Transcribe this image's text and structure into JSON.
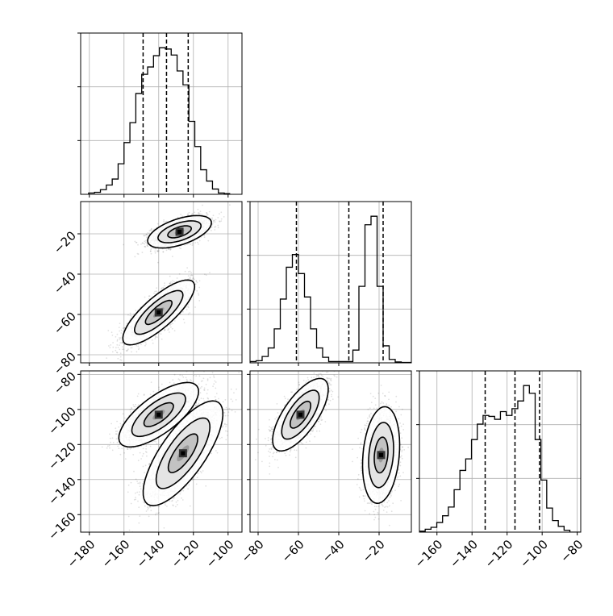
{
  "chart_data": {
    "type": "corner",
    "grid": true,
    "parameters": [
      {
        "xlim": [
          -185,
          -92
        ],
        "ticks": [
          -180,
          -160,
          -140,
          -120,
          -100
        ],
        "tick_labels": [
          "−180",
          "−160",
          "−140",
          "−120",
          "−100"
        ]
      },
      {
        "xlim": [
          -84,
          -4
        ],
        "ticks": [
          -80,
          -60,
          -40,
          -20
        ],
        "tick_labels": [
          "−80",
          "−60",
          "−40",
          "−20"
        ]
      },
      {
        "xlim": [
          -170,
          -78
        ],
        "ticks": [
          -160,
          -140,
          -120,
          -100,
          -80
        ],
        "tick_labels": [
          "−160",
          "−140",
          "−120",
          "−100",
          "−80"
        ]
      }
    ],
    "diagonal": [
      {
        "param": 0,
        "type": "step-histogram",
        "bin_edges": [
          -180.4,
          -177,
          -173.6,
          -170.2,
          -166.8,
          -163.4,
          -160,
          -156.6,
          -153.2,
          -149.8,
          -146.4,
          -143,
          -139.6,
          -136.2,
          -132.8,
          -129.4,
          -126,
          -122.6,
          -119.2,
          -115.8,
          -112.4,
          -109,
          -105.6,
          -102.2,
          -98.8
        ],
        "counts": [
          2,
          3,
          7,
          14,
          23,
          46,
          78,
          108,
          152,
          181,
          192,
          209,
          221,
          219,
          210,
          186,
          165,
          110,
          72,
          37,
          20,
          8,
          2,
          1
        ],
        "quantiles": [
          -149,
          -135.5,
          -123
        ]
      },
      {
        "param": 1,
        "type": "step-histogram",
        "bin_edges": [
          -84,
          -81,
          -78,
          -75,
          -72,
          -69,
          -66,
          -63,
          -60,
          -57,
          -54,
          -51,
          -48,
          -45,
          -42,
          -39,
          -36,
          -33,
          -30,
          -27,
          -24,
          -21,
          -18,
          -15,
          -12,
          -9,
          -6,
          -3
        ],
        "counts": [
          3,
          5,
          15,
          35,
          80,
          150,
          225,
          255,
          210,
          155,
          80,
          35,
          13,
          3,
          3,
          3,
          3,
          30,
          180,
          325,
          345,
          180,
          40,
          8,
          2,
          1,
          1
        ],
        "quantiles": [
          -61,
          -35,
          -18
        ]
      },
      {
        "param": 2,
        "type": "step-histogram",
        "bin_edges": [
          -170,
          -166.7,
          -163.4,
          -160.1,
          -156.8,
          -153.5,
          -150.2,
          -146.9,
          -143.6,
          -140.3,
          -137,
          -133.7,
          -130.4,
          -127.1,
          -123.8,
          -120.5,
          -117.2,
          -113.9,
          -110.6,
          -107.3,
          -104,
          -100.7,
          -97.4,
          -94.1,
          -90.8,
          -87.5,
          -84.2,
          -80.9,
          -77.6
        ],
        "counts": [
          1,
          3,
          5,
          10,
          17,
          26,
          44,
          64,
          76,
          96,
          112,
          121,
          120,
          117,
          125,
          121,
          128,
          136,
          152,
          144,
          96,
          54,
          25,
          12,
          6,
          2,
          0,
          0
        ],
        "quantiles": [
          -132.5,
          -115.5,
          -101.5
        ]
      }
    ],
    "off_diagonal": [
      {
        "x_param": 0,
        "y_param": 1,
        "clusters": [
          {
            "center": [
              -128,
              -19
            ],
            "spread": [
              8,
              3.5
            ],
            "corr": 0.55,
            "n": 2600
          },
          {
            "center": [
              -140,
              -59
            ],
            "spread": [
              9,
              7
            ],
            "corr": 0.8,
            "n": 2400
          }
        ],
        "contour_levels": 3
      },
      {
        "x_param": 0,
        "y_param": 2,
        "clusters": [
          {
            "center": [
              -140,
              -103
            ],
            "spread": [
              10,
              8
            ],
            "corr": 0.72,
            "n": 2500
          },
          {
            "center": [
              -126,
              -125
            ],
            "spread": [
              10,
              13
            ],
            "corr": 0.75,
            "n": 2500
          }
        ],
        "contour_levels": 3
      },
      {
        "x_param": 1,
        "y_param": 2,
        "clusters": [
          {
            "center": [
              -59,
              -103
            ],
            "spread": [
              6,
              9
            ],
            "corr": 0.7,
            "n": 2500
          },
          {
            "center": [
              -19,
              -126
            ],
            "spread": [
              4,
              12
            ],
            "corr": 0.2,
            "n": 2500
          }
        ],
        "contour_levels": 3
      }
    ]
  }
}
